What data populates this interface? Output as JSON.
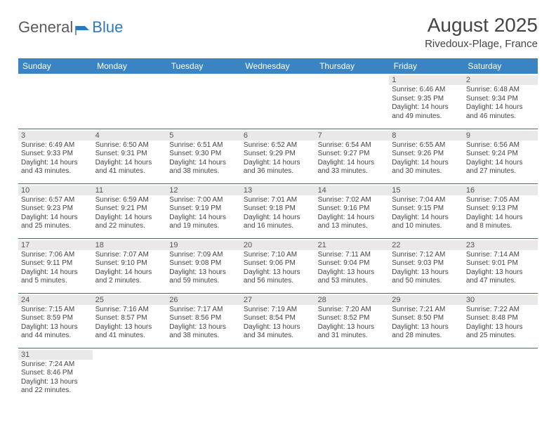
{
  "logo": {
    "word1": "General",
    "word2": "Blue"
  },
  "title": "August 2025",
  "location": "Rivedoux-Plage, France",
  "colors": {
    "header_bg": "#3b84c4",
    "header_text": "#ffffff",
    "cell_border": "#2b6fa8",
    "daynum_bg": "#e9e9e9",
    "text": "#444444",
    "logo_gray": "#5a5a5a",
    "logo_blue": "#2b7ac0"
  },
  "day_headers": [
    "Sunday",
    "Monday",
    "Tuesday",
    "Wednesday",
    "Thursday",
    "Friday",
    "Saturday"
  ],
  "weeks": [
    [
      {
        "blank": true
      },
      {
        "blank": true
      },
      {
        "blank": true
      },
      {
        "blank": true
      },
      {
        "blank": true
      },
      {
        "n": "1",
        "sr": "Sunrise: 6:46 AM",
        "ss": "Sunset: 9:35 PM",
        "d1": "Daylight: 14 hours",
        "d2": "and 49 minutes."
      },
      {
        "n": "2",
        "sr": "Sunrise: 6:48 AM",
        "ss": "Sunset: 9:34 PM",
        "d1": "Daylight: 14 hours",
        "d2": "and 46 minutes."
      }
    ],
    [
      {
        "n": "3",
        "sr": "Sunrise: 6:49 AM",
        "ss": "Sunset: 9:33 PM",
        "d1": "Daylight: 14 hours",
        "d2": "and 43 minutes."
      },
      {
        "n": "4",
        "sr": "Sunrise: 6:50 AM",
        "ss": "Sunset: 9:31 PM",
        "d1": "Daylight: 14 hours",
        "d2": "and 41 minutes."
      },
      {
        "n": "5",
        "sr": "Sunrise: 6:51 AM",
        "ss": "Sunset: 9:30 PM",
        "d1": "Daylight: 14 hours",
        "d2": "and 38 minutes."
      },
      {
        "n": "6",
        "sr": "Sunrise: 6:52 AM",
        "ss": "Sunset: 9:29 PM",
        "d1": "Daylight: 14 hours",
        "d2": "and 36 minutes."
      },
      {
        "n": "7",
        "sr": "Sunrise: 6:54 AM",
        "ss": "Sunset: 9:27 PM",
        "d1": "Daylight: 14 hours",
        "d2": "and 33 minutes."
      },
      {
        "n": "8",
        "sr": "Sunrise: 6:55 AM",
        "ss": "Sunset: 9:26 PM",
        "d1": "Daylight: 14 hours",
        "d2": "and 30 minutes."
      },
      {
        "n": "9",
        "sr": "Sunrise: 6:56 AM",
        "ss": "Sunset: 9:24 PM",
        "d1": "Daylight: 14 hours",
        "d2": "and 27 minutes."
      }
    ],
    [
      {
        "n": "10",
        "sr": "Sunrise: 6:57 AM",
        "ss": "Sunset: 9:23 PM",
        "d1": "Daylight: 14 hours",
        "d2": "and 25 minutes."
      },
      {
        "n": "11",
        "sr": "Sunrise: 6:59 AM",
        "ss": "Sunset: 9:21 PM",
        "d1": "Daylight: 14 hours",
        "d2": "and 22 minutes."
      },
      {
        "n": "12",
        "sr": "Sunrise: 7:00 AM",
        "ss": "Sunset: 9:19 PM",
        "d1": "Daylight: 14 hours",
        "d2": "and 19 minutes."
      },
      {
        "n": "13",
        "sr": "Sunrise: 7:01 AM",
        "ss": "Sunset: 9:18 PM",
        "d1": "Daylight: 14 hours",
        "d2": "and 16 minutes."
      },
      {
        "n": "14",
        "sr": "Sunrise: 7:02 AM",
        "ss": "Sunset: 9:16 PM",
        "d1": "Daylight: 14 hours",
        "d2": "and 13 minutes."
      },
      {
        "n": "15",
        "sr": "Sunrise: 7:04 AM",
        "ss": "Sunset: 9:15 PM",
        "d1": "Daylight: 14 hours",
        "d2": "and 10 minutes."
      },
      {
        "n": "16",
        "sr": "Sunrise: 7:05 AM",
        "ss": "Sunset: 9:13 PM",
        "d1": "Daylight: 14 hours",
        "d2": "and 8 minutes."
      }
    ],
    [
      {
        "n": "17",
        "sr": "Sunrise: 7:06 AM",
        "ss": "Sunset: 9:11 PM",
        "d1": "Daylight: 14 hours",
        "d2": "and 5 minutes."
      },
      {
        "n": "18",
        "sr": "Sunrise: 7:07 AM",
        "ss": "Sunset: 9:10 PM",
        "d1": "Daylight: 14 hours",
        "d2": "and 2 minutes."
      },
      {
        "n": "19",
        "sr": "Sunrise: 7:09 AM",
        "ss": "Sunset: 9:08 PM",
        "d1": "Daylight: 13 hours",
        "d2": "and 59 minutes."
      },
      {
        "n": "20",
        "sr": "Sunrise: 7:10 AM",
        "ss": "Sunset: 9:06 PM",
        "d1": "Daylight: 13 hours",
        "d2": "and 56 minutes."
      },
      {
        "n": "21",
        "sr": "Sunrise: 7:11 AM",
        "ss": "Sunset: 9:04 PM",
        "d1": "Daylight: 13 hours",
        "d2": "and 53 minutes."
      },
      {
        "n": "22",
        "sr": "Sunrise: 7:12 AM",
        "ss": "Sunset: 9:03 PM",
        "d1": "Daylight: 13 hours",
        "d2": "and 50 minutes."
      },
      {
        "n": "23",
        "sr": "Sunrise: 7:14 AM",
        "ss": "Sunset: 9:01 PM",
        "d1": "Daylight: 13 hours",
        "d2": "and 47 minutes."
      }
    ],
    [
      {
        "n": "24",
        "sr": "Sunrise: 7:15 AM",
        "ss": "Sunset: 8:59 PM",
        "d1": "Daylight: 13 hours",
        "d2": "and 44 minutes."
      },
      {
        "n": "25",
        "sr": "Sunrise: 7:16 AM",
        "ss": "Sunset: 8:57 PM",
        "d1": "Daylight: 13 hours",
        "d2": "and 41 minutes."
      },
      {
        "n": "26",
        "sr": "Sunrise: 7:17 AM",
        "ss": "Sunset: 8:56 PM",
        "d1": "Daylight: 13 hours",
        "d2": "and 38 minutes."
      },
      {
        "n": "27",
        "sr": "Sunrise: 7:19 AM",
        "ss": "Sunset: 8:54 PM",
        "d1": "Daylight: 13 hours",
        "d2": "and 34 minutes."
      },
      {
        "n": "28",
        "sr": "Sunrise: 7:20 AM",
        "ss": "Sunset: 8:52 PM",
        "d1": "Daylight: 13 hours",
        "d2": "and 31 minutes."
      },
      {
        "n": "29",
        "sr": "Sunrise: 7:21 AM",
        "ss": "Sunset: 8:50 PM",
        "d1": "Daylight: 13 hours",
        "d2": "and 28 minutes."
      },
      {
        "n": "30",
        "sr": "Sunrise: 7:22 AM",
        "ss": "Sunset: 8:48 PM",
        "d1": "Daylight: 13 hours",
        "d2": "and 25 minutes."
      }
    ],
    [
      {
        "n": "31",
        "sr": "Sunrise: 7:24 AM",
        "ss": "Sunset: 8:46 PM",
        "d1": "Daylight: 13 hours",
        "d2": "and 22 minutes."
      },
      {
        "blank": true
      },
      {
        "blank": true
      },
      {
        "blank": true
      },
      {
        "blank": true
      },
      {
        "blank": true
      },
      {
        "blank": true
      }
    ]
  ]
}
